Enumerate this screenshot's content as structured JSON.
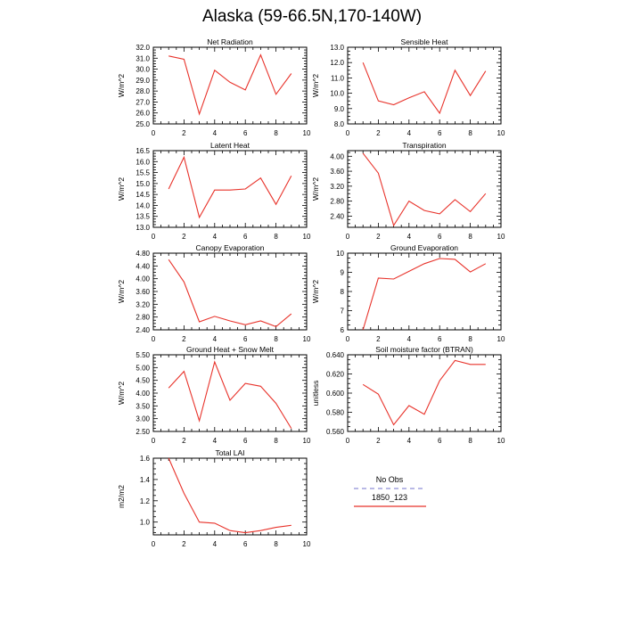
{
  "page_title": "Alaska (59-66.5N,170-140W)",
  "legend": {
    "entries": [
      {
        "label": "No Obs",
        "color": "#8f8fd8",
        "style": "dashed"
      },
      {
        "label": "1850_123",
        "color": "#e8332b",
        "style": "solid"
      }
    ]
  },
  "chart_data": [
    {
      "type": "line",
      "title": "Net Radiation",
      "ylabel": "W/m^2",
      "xlabel": "",
      "xlim": [
        0,
        10
      ],
      "xticks": [
        0,
        2,
        4,
        6,
        8,
        10
      ],
      "ylim": [
        25,
        32
      ],
      "yticks": [
        25,
        26,
        27,
        28,
        29,
        30,
        31,
        32
      ],
      "ytick_labels": [
        "25.0",
        "26.0",
        "27.0",
        "28.0",
        "29.0",
        "30.0",
        "31.0",
        "32.0"
      ],
      "series": [
        {
          "color": "#e8332b",
          "x": [
            1,
            2,
            3,
            4,
            5,
            6,
            7,
            8,
            9
          ],
          "values": [
            31.2,
            30.9,
            25.9,
            29.9,
            28.8,
            28.1,
            31.3,
            27.7,
            29.6
          ]
        }
      ]
    },
    {
      "type": "line",
      "title": "Sensible Heat",
      "ylabel": "W/m^2",
      "xlabel": "",
      "xlim": [
        0,
        10
      ],
      "xticks": [
        0,
        2,
        4,
        6,
        8,
        10
      ],
      "ylim": [
        8,
        13
      ],
      "yticks": [
        8,
        9,
        10,
        11,
        12,
        13
      ],
      "ytick_labels": [
        "8.0",
        "9.0",
        "10.0",
        "11.0",
        "12.0",
        "13.0"
      ],
      "series": [
        {
          "color": "#e8332b",
          "x": [
            1,
            2,
            3,
            4,
            5,
            6,
            7,
            8,
            9
          ],
          "values": [
            12.0,
            9.5,
            9.25,
            9.7,
            10.1,
            8.7,
            11.5,
            9.85,
            11.45
          ]
        }
      ]
    },
    {
      "type": "line",
      "title": "Latent Heat",
      "ylabel": "W/m^2",
      "xlabel": "",
      "xlim": [
        0,
        10
      ],
      "xticks": [
        0,
        2,
        4,
        6,
        8,
        10
      ],
      "ylim": [
        13,
        16.5
      ],
      "yticks": [
        13,
        13.5,
        14,
        14.5,
        15,
        15.5,
        16,
        16.5
      ],
      "ytick_labels": [
        "13.0",
        "13.5",
        "14.0",
        "14.5",
        "15.0",
        "15.5",
        "16.0",
        "16.5"
      ],
      "series": [
        {
          "color": "#e8332b",
          "x": [
            1,
            2,
            3,
            4,
            5,
            6,
            7,
            8,
            9
          ],
          "values": [
            14.75,
            16.2,
            13.45,
            14.7,
            14.7,
            14.75,
            15.25,
            14.05,
            15.35
          ]
        }
      ]
    },
    {
      "type": "line",
      "title": "Transpiration",
      "ylabel": "W/m^2",
      "xlabel": "",
      "xlim": [
        0,
        10
      ],
      "xticks": [
        0,
        2,
        4,
        6,
        8,
        10
      ],
      "ylim": [
        2.1,
        4.15
      ],
      "yticks": [
        2.4,
        2.8,
        3.2,
        3.6,
        4.0
      ],
      "ytick_labels": [
        "2.40",
        "2.80",
        "3.20",
        "3.60",
        "4.00"
      ],
      "series": [
        {
          "color": "#e8332b",
          "x": [
            1,
            2,
            3,
            4,
            5,
            6,
            7,
            8,
            9
          ],
          "values": [
            4.08,
            3.55,
            2.15,
            2.8,
            2.55,
            2.46,
            2.84,
            2.52,
            3.0
          ]
        }
      ]
    },
    {
      "type": "line",
      "title": "Canopy Evaporation",
      "ylabel": "W/m^2",
      "xlabel": "",
      "xlim": [
        0,
        10
      ],
      "xticks": [
        0,
        2,
        4,
        6,
        8,
        10
      ],
      "ylim": [
        2.4,
        4.8
      ],
      "yticks": [
        2.4,
        2.8,
        3.2,
        3.6,
        4.0,
        4.4,
        4.8
      ],
      "ytick_labels": [
        "2.40",
        "2.80",
        "3.20",
        "3.60",
        "4.00",
        "4.40",
        "4.80"
      ],
      "series": [
        {
          "color": "#e8332b",
          "x": [
            1,
            2,
            3,
            4,
            5,
            6,
            7,
            8,
            9
          ],
          "values": [
            4.6,
            3.9,
            2.65,
            2.82,
            2.68,
            2.56,
            2.68,
            2.5,
            2.9
          ]
        }
      ]
    },
    {
      "type": "line",
      "title": "Ground Evaporation",
      "ylabel": "W/m^2",
      "xlabel": "",
      "xlim": [
        0,
        10
      ],
      "xticks": [
        0,
        2,
        4,
        6,
        8,
        10
      ],
      "ylim": [
        6,
        10
      ],
      "yticks": [
        6,
        7,
        8,
        9,
        10
      ],
      "ytick_labels": [
        "6",
        "7",
        "8",
        "9",
        "10"
      ],
      "series": [
        {
          "color": "#e8332b",
          "x": [
            1,
            2,
            3,
            4,
            5,
            6,
            7,
            8,
            9
          ],
          "values": [
            6.0,
            8.7,
            8.65,
            9.05,
            9.45,
            9.72,
            9.68,
            9.02,
            9.45
          ]
        }
      ]
    },
    {
      "type": "line",
      "title": "Ground Heat + Snow Melt",
      "ylabel": "W/m^2",
      "xlabel": "",
      "xlim": [
        0,
        10
      ],
      "xticks": [
        0,
        2,
        4,
        6,
        8,
        10
      ],
      "ylim": [
        2.5,
        5.5
      ],
      "yticks": [
        2.5,
        3,
        3.5,
        4,
        4.5,
        5,
        5.5
      ],
      "ytick_labels": [
        "2.50",
        "3.00",
        "3.50",
        "4.00",
        "4.50",
        "5.00",
        "5.50"
      ],
      "series": [
        {
          "color": "#e8332b",
          "x": [
            1,
            2,
            3,
            4,
            5,
            6,
            7,
            8,
            9
          ],
          "values": [
            4.2,
            4.85,
            2.92,
            5.22,
            3.72,
            4.38,
            4.27,
            3.6,
            2.62
          ]
        }
      ]
    },
    {
      "type": "line",
      "title": "Soil moisture factor (BTRAN)",
      "ylabel": "unitless",
      "xlabel": "",
      "xlim": [
        0,
        10
      ],
      "xticks": [
        0,
        2,
        4,
        6,
        8,
        10
      ],
      "ylim": [
        0.56,
        0.64
      ],
      "yticks": [
        0.56,
        0.58,
        0.6,
        0.62,
        0.64
      ],
      "ytick_labels": [
        "0.560",
        "0.580",
        "0.600",
        "0.620",
        "0.640"
      ],
      "series": [
        {
          "color": "#e8332b",
          "x": [
            1,
            2,
            3,
            4,
            5,
            6,
            7,
            8,
            9
          ],
          "values": [
            0.609,
            0.599,
            0.567,
            0.587,
            0.578,
            0.613,
            0.634,
            0.63,
            0.63
          ]
        }
      ]
    },
    {
      "type": "line",
      "title": "Total LAI",
      "ylabel": "m2/m2",
      "xlabel": "",
      "xlim": [
        0,
        10
      ],
      "xticks": [
        0,
        2,
        4,
        6,
        8,
        10
      ],
      "ylim": [
        0.88,
        1.6
      ],
      "yticks": [
        1.0,
        1.2,
        1.4,
        1.6
      ],
      "ytick_labels": [
        "1.0",
        "1.2",
        "1.4",
        "1.6"
      ],
      "series": [
        {
          "color": "#e8332b",
          "x": [
            1,
            2,
            3,
            4,
            5,
            6,
            7,
            8,
            9
          ],
          "values": [
            1.6,
            1.27,
            1.0,
            0.99,
            0.92,
            0.9,
            0.92,
            0.95,
            0.97
          ]
        }
      ]
    }
  ]
}
